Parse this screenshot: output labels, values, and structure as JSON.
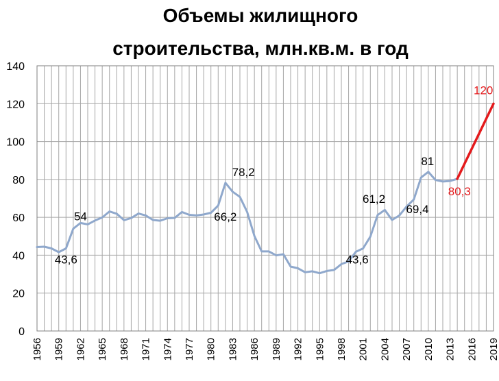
{
  "chart_data": {
    "type": "line",
    "title_lines": [
      "Объемы жилищного",
      "строительства,  млн.кв.м. в год"
    ],
    "xlabel": "",
    "ylabel": "",
    "xlim": [
      1956,
      2019
    ],
    "ylim": [
      0,
      140
    ],
    "y_ticks": [
      0,
      20,
      40,
      60,
      80,
      100,
      120,
      140
    ],
    "x_ticks": [
      1956,
      1959,
      1962,
      1965,
      1968,
      1971,
      1974,
      1977,
      1980,
      1983,
      1986,
      1989,
      1992,
      1995,
      1998,
      2001,
      2004,
      2007,
      2010,
      2013,
      2016,
      2019
    ],
    "grid": true,
    "series": [
      {
        "color": "#8FA8CC",
        "x": [
          1956,
          1957,
          1958,
          1959,
          1960,
          1961,
          1962,
          1963,
          1964,
          1965,
          1966,
          1967,
          1968,
          1969,
          1970,
          1971,
          1972,
          1973,
          1974,
          1975,
          1976,
          1977,
          1978,
          1979,
          1980,
          1981,
          1982,
          1983,
          1984,
          1985,
          1986,
          1987,
          1988,
          1989,
          1990,
          1991,
          1992,
          1993,
          1994,
          1995,
          1996,
          1997,
          1998,
          1999,
          2000,
          2001,
          2002,
          2003,
          2004,
          2005,
          2006,
          2007,
          2008,
          2009,
          2010,
          2011,
          2012,
          2013,
          2014
        ],
        "values": [
          44.3,
          44.5,
          43.6,
          41.6,
          43.6,
          54,
          57,
          56.3,
          58.3,
          59.9,
          63.1,
          61.9,
          58.5,
          59.6,
          62,
          61,
          58.6,
          58.2,
          59.5,
          59.7,
          62.8,
          61.3,
          61,
          61.5,
          62.4,
          66.2,
          78.2,
          73.5,
          70.8,
          62.8,
          50.2,
          42,
          42,
          39.9,
          40.5,
          34,
          33.1,
          31,
          31.5,
          30.5,
          31.7,
          32.2,
          35.3,
          36.7,
          41.8,
          43.6,
          49.8,
          61.2,
          63.9,
          58.6,
          61,
          65.7,
          69.4,
          81,
          84,
          79.7,
          78.9,
          79.2,
          80.3
        ]
      },
      {
        "color": "#E41A1C",
        "x": [
          2014,
          2019
        ],
        "values": [
          80.3,
          120
        ]
      }
    ],
    "annotations": [
      {
        "text": "54",
        "x": 1962,
        "y": 54,
        "color": "#000000",
        "dx": 0,
        "dy": -12
      },
      {
        "text": "43,6",
        "x": 1960,
        "y": 43.6,
        "color": "#000000",
        "dx": 0,
        "dy": 22
      },
      {
        "text": "78,2",
        "x": 1982.6,
        "y": 78.2,
        "color": "#000000",
        "dx": 20,
        "dy": -10
      },
      {
        "text": "66,2",
        "x": 1982,
        "y": 66.2,
        "color": "#000000",
        "dx": 0,
        "dy": 22
      },
      {
        "text": "43,6",
        "x": 2000,
        "y": 43.6,
        "color": "#000000",
        "dx": 2,
        "dy": 22
      },
      {
        "text": "61,2",
        "x": 2002.5,
        "y": 61.2,
        "color": "#000000",
        "dx": 0,
        "dy": -18
      },
      {
        "text": "81",
        "x": 2009.9,
        "y": 81,
        "color": "#000000",
        "dx": 0,
        "dy": -18
      },
      {
        "text": "69,4",
        "x": 2008.5,
        "y": 69.4,
        "color": "#000000",
        "dx": 0,
        "dy": 20
      },
      {
        "text": "80,3",
        "x": 2014.3,
        "y": 80.3,
        "color": "#E41A1C",
        "dx": 0,
        "dy": 24
      },
      {
        "text": "120",
        "x": 2017.6,
        "y": 120,
        "color": "#E41A1C",
        "dx": 0,
        "dy": -14
      }
    ]
  }
}
